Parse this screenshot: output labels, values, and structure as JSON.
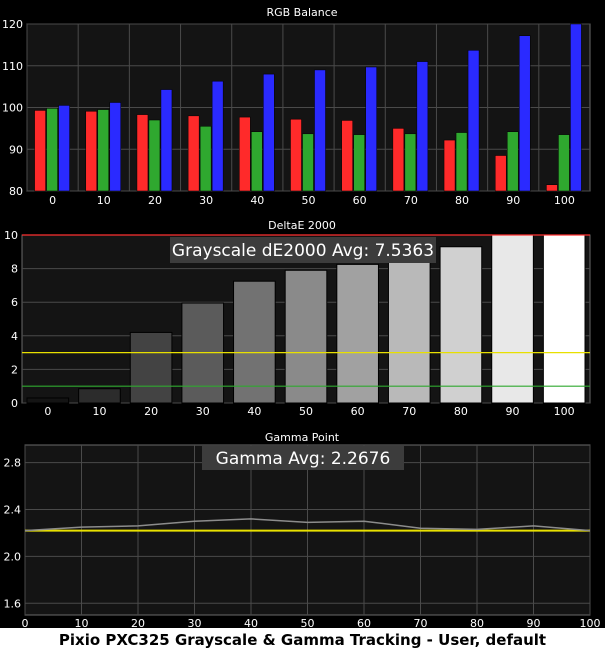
{
  "caption": "Pixio PXC325 Grayscale & Gamma Tracking - User, default",
  "colors": {
    "background": "#000000",
    "plot_bg": "#141414",
    "grid": "#4a4a4a",
    "red": "#ff2a2a",
    "green": "#2fa82f",
    "blue": "#2a2aff",
    "target_yellow": "#e8e000",
    "gamma_line": "#8c8c8c"
  },
  "chart_data": [
    {
      "id": "rgb",
      "type": "bar",
      "title": "RGB Balance",
      "categories": [
        "0",
        "10",
        "20",
        "30",
        "40",
        "50",
        "60",
        "70",
        "80",
        "90",
        "100"
      ],
      "ylim": [
        80,
        120
      ],
      "yticks": [
        80,
        90,
        100,
        110,
        120
      ],
      "series": [
        {
          "color": "red",
          "values": [
            99.3,
            99.1,
            98.3,
            98.0,
            97.7,
            97.2,
            96.9,
            95.0,
            92.2,
            88.5,
            81.5
          ]
        },
        {
          "color": "green",
          "values": [
            99.8,
            99.5,
            97.0,
            95.5,
            94.2,
            93.7,
            93.5,
            93.7,
            94.0,
            94.2,
            93.5
          ]
        },
        {
          "color": "blue",
          "values": [
            100.5,
            101.2,
            104.3,
            106.3,
            108.0,
            109.0,
            109.7,
            111.0,
            113.7,
            117.2,
            120.0
          ]
        }
      ],
      "grid": true
    },
    {
      "id": "de",
      "type": "bar",
      "title": "DeltaE 2000",
      "annotation": "Grayscale dE2000 Avg: 7.5363",
      "categories": [
        "0",
        "10",
        "20",
        "30",
        "40",
        "50",
        "60",
        "70",
        "80",
        "90",
        "100"
      ],
      "values": [
        0.3,
        0.85,
        4.2,
        5.95,
        7.25,
        7.9,
        8.25,
        8.6,
        9.3,
        10.0,
        10.0
      ],
      "ylim": [
        0,
        10
      ],
      "yticks": [
        0,
        2,
        4,
        6,
        8,
        10
      ],
      "thresholds": [
        {
          "value": 10,
          "color": "red"
        },
        {
          "value": 3,
          "color": "yellow"
        },
        {
          "value": 1,
          "color": "green"
        }
      ],
      "grid": true
    },
    {
      "id": "gamma",
      "type": "line",
      "title": "Gamma Point",
      "annotation": "Gamma Avg: 2.2676",
      "x": [
        0,
        10,
        20,
        30,
        40,
        50,
        60,
        70,
        80,
        90,
        100
      ],
      "xticks": [
        0,
        10,
        20,
        30,
        40,
        50,
        60,
        70,
        80,
        90,
        100
      ],
      "values": [
        2.22,
        2.25,
        2.26,
        2.3,
        2.32,
        2.29,
        2.3,
        2.24,
        2.23,
        2.26,
        2.22
      ],
      "target": 2.22,
      "ylim": [
        1.5,
        2.95
      ],
      "yticks": [
        1.6,
        2.0,
        2.4,
        2.8
      ],
      "grid": true
    }
  ]
}
